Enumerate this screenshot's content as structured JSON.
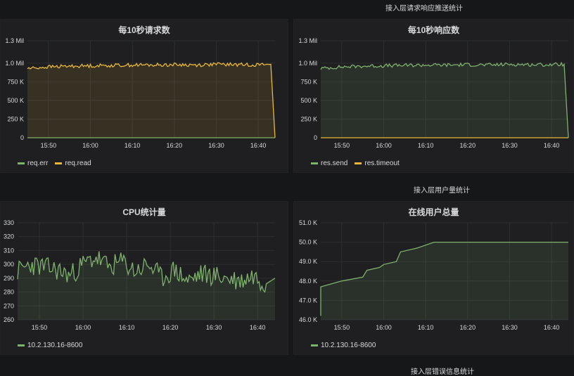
{
  "rows": [
    {
      "title": "接入层请求响应推送统计"
    },
    {
      "title": "接入层用户量统计"
    },
    {
      "title": "接入层错误信息统计"
    }
  ],
  "panels": [
    {
      "title": "每10秒请求数",
      "legend": [
        {
          "label": "req.err",
          "color": "#7eb26d"
        },
        {
          "label": "req.read",
          "color": "#eab839"
        }
      ]
    },
    {
      "title": "每10秒响应数",
      "legend": [
        {
          "label": "res.send",
          "color": "#7eb26d"
        },
        {
          "label": "res.timeout",
          "color": "#eab839"
        }
      ]
    },
    {
      "title": "CPU统计量",
      "legend": [
        {
          "label": "10.2.130.16-8600",
          "color": "#7eb26d"
        }
      ]
    },
    {
      "title": "在线用户总量",
      "legend": [
        {
          "label": "10.2.130.16-8600",
          "color": "#7eb26d"
        }
      ]
    }
  ],
  "chart_data": [
    {
      "type": "area",
      "title": "每10秒请求数",
      "x_ticks": [
        "15:50",
        "16:00",
        "16:10",
        "16:20",
        "16:30",
        "16:40"
      ],
      "x_range": [
        "15:45",
        "16:44"
      ],
      "y_ticks": [
        "0",
        "250 K",
        "500 K",
        "750 K",
        "1.0 Mil",
        "1.3 Mil"
      ],
      "ylim": [
        0,
        1300000
      ],
      "grid": true,
      "legend_position": "bottom-left",
      "series": [
        {
          "name": "req.err",
          "color": "#7eb26d",
          "values_summary": "constant 0",
          "x": [
            "15:45",
            "16:44"
          ],
          "y": [
            0,
            0
          ]
        },
        {
          "name": "req.read",
          "color": "#eab839",
          "fill": true,
          "x": [
            "15:45",
            "15:50",
            "15:55",
            "16:00",
            "16:05",
            "16:10",
            "16:15",
            "16:20",
            "16:25",
            "16:30",
            "16:35",
            "16:40",
            "16:43",
            "16:44"
          ],
          "y": [
            930000,
            950000,
            960000,
            965000,
            970000,
            975000,
            975000,
            980000,
            975000,
            985000,
            980000,
            980000,
            985000,
            0
          ]
        }
      ]
    },
    {
      "type": "area",
      "title": "每10秒响应数",
      "x_ticks": [
        "15:50",
        "16:00",
        "16:10",
        "16:20",
        "16:30",
        "16:40"
      ],
      "x_range": [
        "15:45",
        "16:44"
      ],
      "y_ticks": [
        "0",
        "250 K",
        "500 K",
        "750 K",
        "1.0 Mil",
        "1.3 Mil"
      ],
      "ylim": [
        0,
        1300000
      ],
      "grid": true,
      "legend_position": "bottom-left",
      "series": [
        {
          "name": "res.send",
          "color": "#7eb26d",
          "fill": true,
          "x": [
            "15:45",
            "15:50",
            "15:55",
            "16:00",
            "16:05",
            "16:10",
            "16:15",
            "16:20",
            "16:25",
            "16:30",
            "16:35",
            "16:40",
            "16:43",
            "16:44"
          ],
          "y": [
            930000,
            950000,
            960000,
            965000,
            970000,
            975000,
            975000,
            980000,
            975000,
            985000,
            980000,
            980000,
            985000,
            0
          ]
        },
        {
          "name": "res.timeout",
          "color": "#eab839",
          "values_summary": "constant 0",
          "x": [
            "15:45",
            "16:44"
          ],
          "y": [
            0,
            0
          ]
        }
      ]
    },
    {
      "type": "area",
      "title": "CPU统计量",
      "x_ticks": [
        "15:50",
        "16:00",
        "16:10",
        "16:20",
        "16:30",
        "16:40"
      ],
      "x_range": [
        "15:45",
        "16:44"
      ],
      "y_ticks": [
        "260",
        "270",
        "280",
        "290",
        "300",
        "310",
        "320",
        "330"
      ],
      "ylim": [
        260,
        330
      ],
      "grid": true,
      "legend_position": "bottom-left",
      "series": [
        {
          "name": "10.2.130.16-8600",
          "color": "#7eb26d",
          "fill": true,
          "x": [
            "15:45",
            "15:48",
            "15:51",
            "15:54",
            "15:57",
            "16:00",
            "16:03",
            "16:06",
            "16:09",
            "16:12",
            "16:15",
            "16:18",
            "16:21",
            "16:24",
            "16:27",
            "16:30",
            "16:33",
            "16:36",
            "16:39",
            "16:42",
            "16:44"
          ],
          "y": [
            295,
            300,
            298,
            296,
            292,
            300,
            305,
            298,
            302,
            295,
            300,
            290,
            296,
            288,
            293,
            292,
            290,
            288,
            292,
            286,
            290
          ]
        }
      ]
    },
    {
      "type": "area",
      "title": "在线用户总量",
      "x_ticks": [
        "15:50",
        "16:00",
        "16:10",
        "16:20",
        "16:30",
        "16:40"
      ],
      "x_range": [
        "15:45",
        "16:44"
      ],
      "y_ticks": [
        "46.0 K",
        "47.0 K",
        "48.0 K",
        "49.0 K",
        "50.0 K",
        "51.0 K"
      ],
      "ylim": [
        46000,
        51000
      ],
      "grid": true,
      "legend_position": "bottom-left",
      "series": [
        {
          "name": "10.2.130.16-8600",
          "color": "#7eb26d",
          "fill": true,
          "x": [
            "15:45",
            "15:45",
            "15:50",
            "15:55",
            "15:56",
            "15:59",
            "16:00",
            "16:03",
            "16:04",
            "16:08",
            "16:12",
            "16:44"
          ],
          "y": [
            46200,
            47700,
            48000,
            48200,
            48550,
            48700,
            48850,
            49000,
            49500,
            49700,
            50000,
            50000
          ]
        }
      ]
    }
  ]
}
